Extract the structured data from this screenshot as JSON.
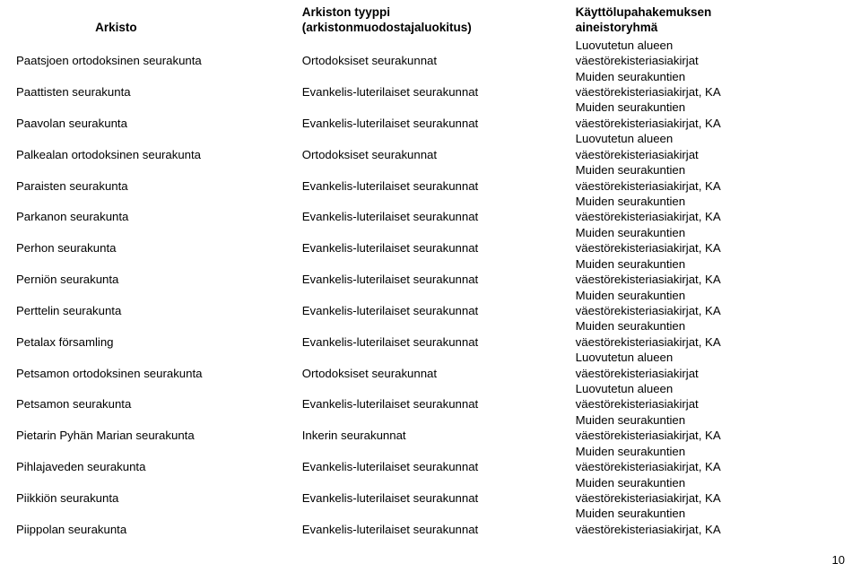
{
  "page_number": "10",
  "columns": {
    "archive": "Arkisto",
    "type_line1": "Arkiston tyyppi",
    "type_line2": "(arkistonmuodostajaluokitus)",
    "group_line1": "Käyttölupahakemuksen",
    "group_line2": "aineistoryhmä"
  },
  "rows": [
    {
      "archive": "Paatsjoen ortodoksinen seurakunta",
      "type": "Ortodoksiset seurakunnat",
      "group_line1": "Luovutetun alueen",
      "group_line2": "väestörekisteriasiakirjat"
    },
    {
      "archive": "Paattisten seurakunta",
      "type": "Evankelis-luterilaiset seurakunnat",
      "group_line1": "Muiden seurakuntien",
      "group_line2": "väestörekisteriasiakirjat, KA"
    },
    {
      "archive": "Paavolan seurakunta",
      "type": "Evankelis-luterilaiset seurakunnat",
      "group_line1": "Muiden seurakuntien",
      "group_line2": "väestörekisteriasiakirjat, KA"
    },
    {
      "archive": "Palkealan ortodoksinen seurakunta",
      "type": "Ortodoksiset seurakunnat",
      "group_line1": "Luovutetun alueen",
      "group_line2": "väestörekisteriasiakirjat"
    },
    {
      "archive": "Paraisten seurakunta",
      "type": "Evankelis-luterilaiset seurakunnat",
      "group_line1": "Muiden seurakuntien",
      "group_line2": "väestörekisteriasiakirjat, KA"
    },
    {
      "archive": "Parkanon seurakunta",
      "type": "Evankelis-luterilaiset seurakunnat",
      "group_line1": "Muiden seurakuntien",
      "group_line2": "väestörekisteriasiakirjat, KA"
    },
    {
      "archive": "Perhon seurakunta",
      "type": "Evankelis-luterilaiset seurakunnat",
      "group_line1": "Muiden seurakuntien",
      "group_line2": "väestörekisteriasiakirjat, KA"
    },
    {
      "archive": "Perniön seurakunta",
      "type": "Evankelis-luterilaiset seurakunnat",
      "group_line1": "Muiden seurakuntien",
      "group_line2": "väestörekisteriasiakirjat, KA"
    },
    {
      "archive": "Perttelin seurakunta",
      "type": "Evankelis-luterilaiset seurakunnat",
      "group_line1": "Muiden seurakuntien",
      "group_line2": "väestörekisteriasiakirjat, KA"
    },
    {
      "archive": "Petalax församling",
      "type": "Evankelis-luterilaiset seurakunnat",
      "group_line1": "Muiden seurakuntien",
      "group_line2": "väestörekisteriasiakirjat, KA"
    },
    {
      "archive": "Petsamon ortodoksinen seurakunta",
      "type": "Ortodoksiset seurakunnat",
      "group_line1": "Luovutetun alueen",
      "group_line2": "väestörekisteriasiakirjat"
    },
    {
      "archive": "Petsamon seurakunta",
      "type": "Evankelis-luterilaiset seurakunnat",
      "group_line1": "Luovutetun alueen",
      "group_line2": "väestörekisteriasiakirjat"
    },
    {
      "archive": "Pietarin Pyhän Marian seurakunta",
      "type": "Inkerin seurakunnat",
      "group_line1": "Muiden seurakuntien",
      "group_line2": "väestörekisteriasiakirjat, KA"
    },
    {
      "archive": "Pihlajaveden seurakunta",
      "type": "Evankelis-luterilaiset seurakunnat",
      "group_line1": "Muiden seurakuntien",
      "group_line2": "väestörekisteriasiakirjat, KA"
    },
    {
      "archive": "Piikkiön seurakunta",
      "type": "Evankelis-luterilaiset seurakunnat",
      "group_line1": "Muiden seurakuntien",
      "group_line2": "väestörekisteriasiakirjat, KA"
    },
    {
      "archive": "Piippolan seurakunta",
      "type": "Evankelis-luterilaiset seurakunnat",
      "group_line1": "Muiden seurakuntien",
      "group_line2": "väestörekisteriasiakirjat, KA"
    }
  ]
}
